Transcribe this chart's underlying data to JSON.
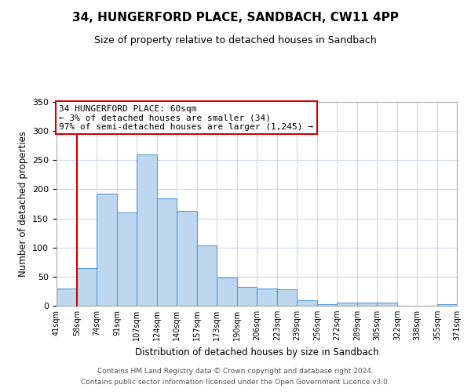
{
  "title": "34, HUNGERFORD PLACE, SANDBACH, CW11 4PP",
  "subtitle": "Size of property relative to detached houses in Sandbach",
  "xlabel": "Distribution of detached houses by size in Sandbach",
  "ylabel": "Number of detached properties",
  "bins": [
    41,
    58,
    74,
    91,
    107,
    124,
    140,
    157,
    173,
    190,
    206,
    223,
    239,
    256,
    272,
    289,
    305,
    322,
    338,
    355,
    371
  ],
  "bar_heights": [
    30,
    65,
    193,
    160,
    260,
    184,
    163,
    103,
    49,
    32,
    30,
    28,
    10,
    3,
    5,
    5,
    6,
    0,
    0,
    3
  ],
  "bin_labels": [
    "41sqm",
    "58sqm",
    "74sqm",
    "91sqm",
    "107sqm",
    "124sqm",
    "140sqm",
    "157sqm",
    "173sqm",
    "190sqm",
    "206sqm",
    "223sqm",
    "239sqm",
    "256sqm",
    "272sqm",
    "289sqm",
    "305sqm",
    "322sqm",
    "338sqm",
    "355sqm",
    "371sqm"
  ],
  "bar_color": "#bdd7ee",
  "bar_edge_color": "#5b9bd5",
  "red_line_color": "#cc0000",
  "annotation_box_text": "34 HUNGERFORD PLACE: 60sqm\n← 3% of detached houses are smaller (34)\n97% of semi-detached houses are larger (1,245) →",
  "ylim": [
    0,
    350
  ],
  "yticks": [
    0,
    50,
    100,
    150,
    200,
    250,
    300,
    350
  ],
  "background_color": "#ffffff",
  "grid_color": "#d0d8e8",
  "footer_line1": "Contains HM Land Registry data © Crown copyright and database right 2024.",
  "footer_line2": "Contains public sector information licensed under the Open Government Licence v3.0."
}
